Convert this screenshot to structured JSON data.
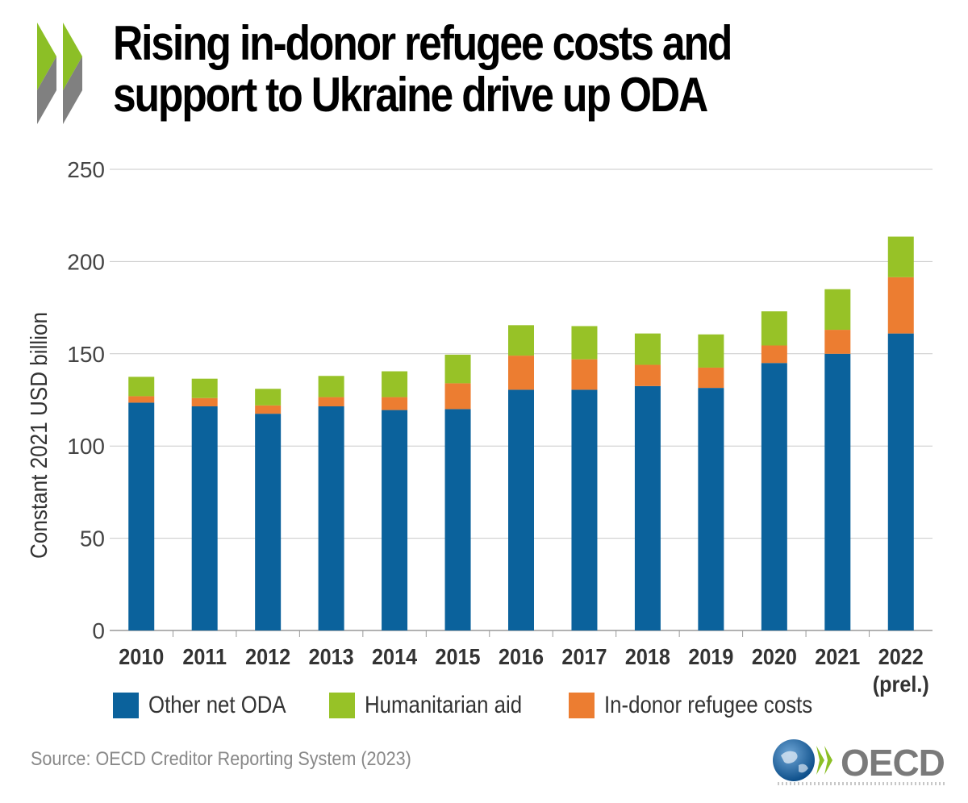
{
  "title": "Rising in-donor refugee costs and support to Ukraine drive up ODA",
  "source": "Source: OECD Creditor Reporting System (2023)",
  "logo_text": "OECD",
  "colors": {
    "other_net_oda": "#0b629c",
    "humanitarian_aid": "#97c227",
    "in_donor_refugee_costs": "#ec7d31",
    "chevron_green": "#8cbf26",
    "chevron_grey": "#808080"
  },
  "chart_data": {
    "type": "bar",
    "stacked": true,
    "title": "Rising in-donor refugee costs and support to Ukraine drive up ODA",
    "xlabel": "",
    "ylabel": "Constant 2021 USD billion",
    "ylim": [
      0,
      250
    ],
    "yticks": [
      0,
      50,
      100,
      150,
      200,
      250
    ],
    "grid": true,
    "legend_position": "bottom",
    "categories": [
      "2010",
      "2011",
      "2012",
      "2013",
      "2014",
      "2015",
      "2016",
      "2017",
      "2018",
      "2019",
      "2020",
      "2021",
      "2022\n(prel.)"
    ],
    "series": [
      {
        "name": "Other net ODA",
        "values": [
          123.5,
          121.5,
          117.5,
          121.5,
          119.5,
          120,
          130.5,
          130.5,
          132.5,
          131.5,
          145,
          150,
          161
        ]
      },
      {
        "name": "In-donor refugee costs",
        "values": [
          3.5,
          4.5,
          4.5,
          5,
          7,
          14,
          18.5,
          16.5,
          11.5,
          11,
          9.5,
          13,
          30.5
        ]
      },
      {
        "name": "Humanitarian aid",
        "values": [
          10.5,
          10.5,
          9,
          11.5,
          14,
          15.5,
          16.5,
          18,
          17,
          18,
          18.5,
          22,
          22
        ]
      }
    ],
    "legend_order": [
      "Other net ODA",
      "Humanitarian aid",
      "In-donor refugee costs"
    ]
  }
}
